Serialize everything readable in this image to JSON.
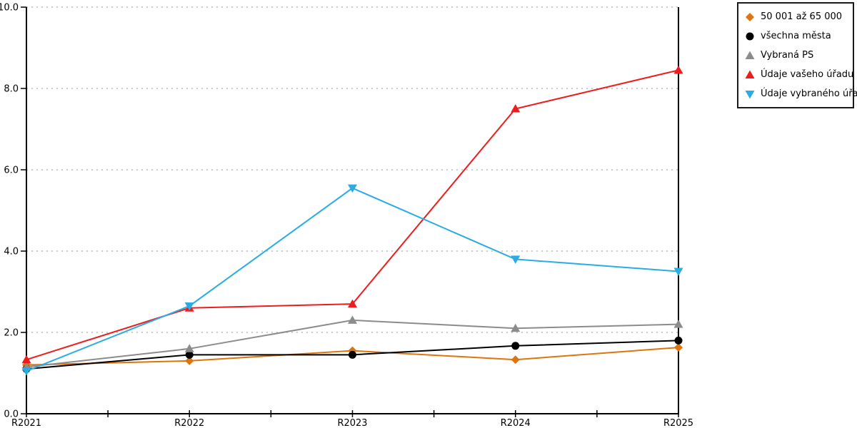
{
  "chart_data": {
    "type": "line",
    "title": "",
    "xlabel": "",
    "ylabel": "",
    "categories": [
      "R2021",
      "R2022",
      "R2023",
      "R2024",
      "R2025"
    ],
    "y_ticks": [
      "0.0",
      "2.0",
      "4.0",
      "6.0",
      "8.0",
      "10.0"
    ],
    "y_tick_values": [
      0,
      2,
      4,
      6,
      8,
      10
    ],
    "ylim": [
      0,
      10
    ],
    "grid": "horizontal dotted lines at 2,4,6,8,10",
    "legend_position": "top-right",
    "axis_color": "#000000",
    "gridline_color": "#ADADAD",
    "background_color": "#FFFFFF",
    "series": [
      {
        "name": "50 001 až 65 000",
        "marker": "diamond",
        "color": "#DE740E",
        "values": [
          1.2,
          1.3,
          1.55,
          1.33,
          1.63
        ]
      },
      {
        "name": "všechna města",
        "marker": "circle",
        "color": "#000000",
        "values": [
          1.1,
          1.45,
          1.45,
          1.67,
          1.8
        ]
      },
      {
        "name": "Vybraná PS",
        "marker": "triangle-up",
        "color": "#8C8C8C",
        "values": [
          1.15,
          1.6,
          2.3,
          2.1,
          2.2
        ]
      },
      {
        "name": "Údaje vašeho úřadu",
        "marker": "triangle-up",
        "color": "#EE1C1C",
        "values": [
          1.33,
          2.6,
          2.7,
          7.5,
          8.45
        ]
      },
      {
        "name": "Údaje vybraného úřadu",
        "marker": "triangle-down",
        "color": "#29ACE3",
        "values": [
          1.05,
          2.65,
          5.55,
          3.8,
          3.5
        ]
      }
    ]
  }
}
